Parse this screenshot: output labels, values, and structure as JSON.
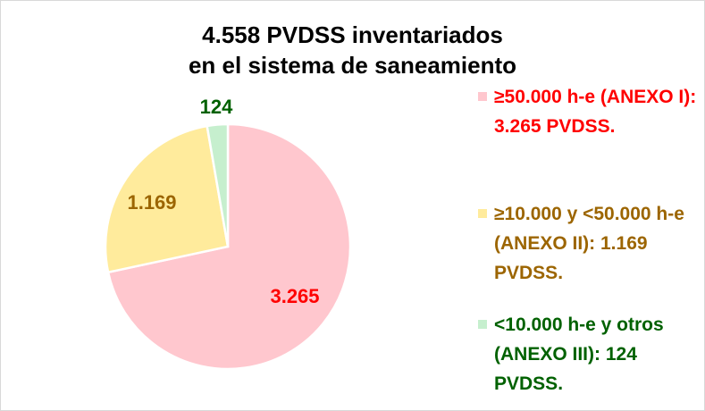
{
  "chart_data": {
    "type": "pie",
    "title_lines": [
      "4.558 PVDSS inventariados",
      "en el sistema de saneamiento"
    ],
    "slices": [
      {
        "label": "≥50.000 h-e (ANEXO I): 3.265 PVDSS.",
        "value": 3265,
        "data_label": "3.265",
        "color": "#ffc7ce",
        "label_color": "#ff0000"
      },
      {
        "label": "≥10.000 y <50.000 h-e (ANEXO II): 1.169 PVDSS.",
        "value": 1169,
        "data_label": "1.169",
        "color": "#ffeb9c",
        "label_color": "#9c6500"
      },
      {
        "label": "<10.000 h-e y otros (ANEXO III): 124 PVDSS.",
        "value": 124,
        "data_label": "124",
        "color": "#c6efce",
        "label_color": "#006100"
      }
    ],
    "start_angle_deg": 0,
    "direction": "clockwise",
    "legend_position": "right"
  }
}
